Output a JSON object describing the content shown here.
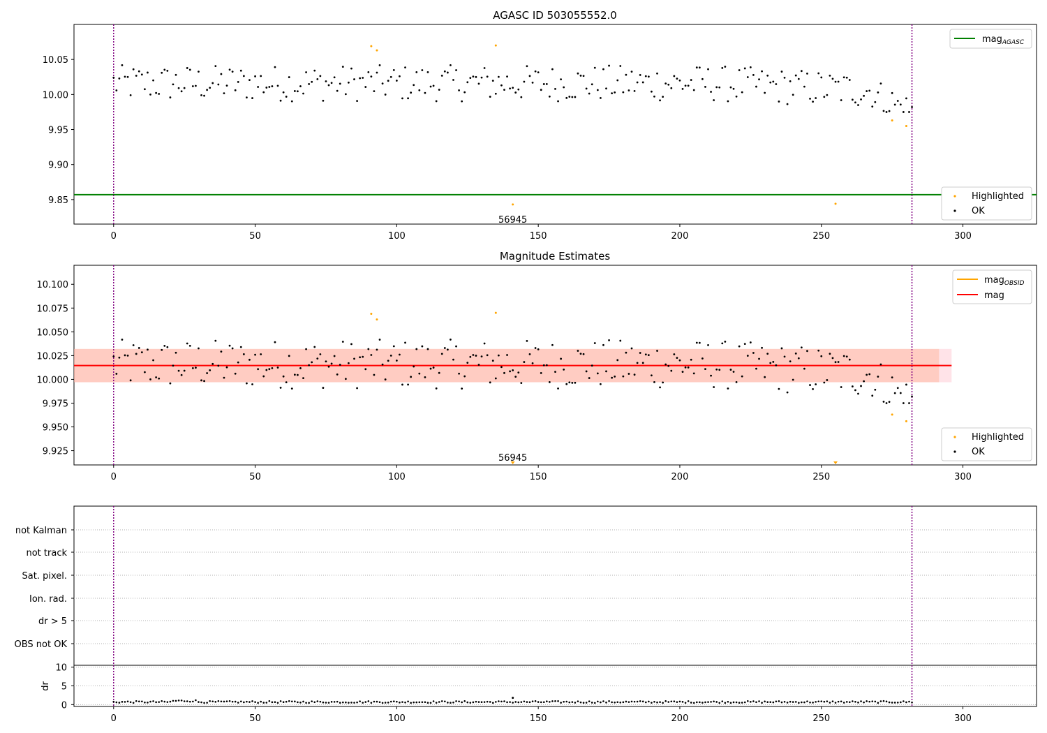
{
  "colors": {
    "ok": "#000000",
    "highlighted": "#ffa500",
    "mag_agasc": "#008000",
    "mag_obsid": "#ffa500",
    "mag": "#ff0000",
    "band_outer": "#ffc0cb",
    "band_inner": "#ffa07a",
    "interval_line": "#800080",
    "grid": "#b0b0b0"
  },
  "chart_data": [
    {
      "type": "scatter",
      "title": "AGASC ID 503055552.0",
      "xlim": [
        -14,
        326
      ],
      "ylim": [
        9.815,
        10.1
      ],
      "x_ticks": [
        0,
        50,
        100,
        150,
        200,
        250,
        300
      ],
      "y_ticks": [
        9.85,
        9.9,
        9.95,
        10.0,
        10.05
      ],
      "y_tick_labels": [
        "9.85",
        "9.90",
        "9.95",
        "10.00",
        "10.05"
      ],
      "mag_agasc": 9.857,
      "interval_lines": [
        0,
        282
      ],
      "highlighted_points": [
        [
          91,
          10.069
        ],
        [
          93,
          10.063
        ],
        [
          135,
          10.07
        ],
        [
          141,
          9.843
        ],
        [
          255,
          9.844
        ],
        [
          275,
          9.963
        ],
        [
          280,
          9.955
        ]
      ],
      "annotations": [
        {
          "text": "56945",
          "x": 141,
          "y": 9.822
        }
      ],
      "legend_top": [
        {
          "name": "mag",
          "sub": "AGASC",
          "color": "#008000"
        }
      ],
      "legend_bottom": [
        "Highlighted",
        "OK"
      ]
    },
    {
      "type": "scatter",
      "title": "Magnitude Estimates",
      "xlim": [
        -14,
        326
      ],
      "ylim": [
        9.91,
        10.12
      ],
      "x_ticks": [
        0,
        50,
        100,
        150,
        200,
        250,
        300
      ],
      "y_ticks": [
        9.925,
        9.95,
        9.975,
        10.0,
        10.025,
        10.05,
        10.075,
        10.1
      ],
      "y_tick_labels": [
        "9.925",
        "9.950",
        "9.975",
        "10.000",
        "10.025",
        "10.050",
        "10.075",
        "10.100"
      ],
      "mag": 10.0145,
      "band_outer": [
        9.997,
        10.032
      ],
      "band_inner": [
        9.997,
        10.032
      ],
      "band_x": [
        -14,
        296
      ],
      "interval_lines": [
        0,
        282
      ],
      "highlighted_points": [
        [
          91,
          10.069
        ],
        [
          93,
          10.063
        ],
        [
          135,
          10.07
        ],
        [
          275,
          9.963
        ],
        [
          280,
          9.956
        ]
      ],
      "clipped_points": [
        141,
        255
      ],
      "annotations": [
        {
          "text": "56945",
          "x": 141,
          "y": 9.918
        }
      ],
      "legend_top": [
        {
          "name": "mag",
          "sub": "OBSID",
          "color": "#ffa500"
        },
        {
          "name": "mag",
          "sub": "",
          "color": "#ff0000"
        }
      ],
      "legend_bottom": [
        "Highlighted",
        "OK"
      ]
    },
    {
      "type": "scatter",
      "flags": [
        "not Kalman",
        "not track",
        "Sat. pixel.",
        "Ion. rad.",
        "dr > 5",
        "OBS not OK"
      ],
      "dr_ylabel": "dr",
      "dr_ticks": [
        0,
        5,
        10
      ],
      "dr_ylim": [
        -0.5,
        10.5
      ],
      "xlim": [
        -14,
        326
      ],
      "x_ticks": [
        0,
        50,
        100,
        150,
        200,
        250,
        300
      ],
      "interval_lines": [
        0,
        282
      ],
      "dr_peak": [
        141,
        1.8
      ]
    }
  ]
}
